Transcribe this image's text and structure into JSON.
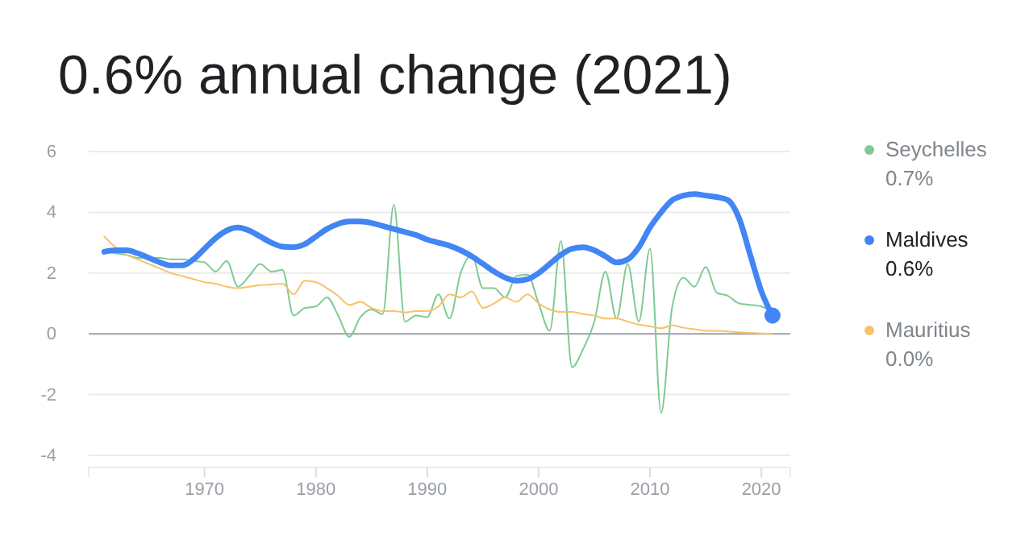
{
  "chart_data": {
    "type": "line",
    "title": "0.6% annual change (2021)",
    "x": [
      1961,
      1962,
      1963,
      1964,
      1965,
      1966,
      1967,
      1968,
      1969,
      1970,
      1971,
      1972,
      1973,
      1974,
      1975,
      1976,
      1977,
      1978,
      1979,
      1980,
      1981,
      1982,
      1983,
      1984,
      1985,
      1986,
      1987,
      1988,
      1989,
      1990,
      1991,
      1992,
      1993,
      1994,
      1995,
      1996,
      1997,
      1998,
      1999,
      2000,
      2001,
      2002,
      2003,
      2004,
      2005,
      2006,
      2007,
      2008,
      2009,
      2010,
      2011,
      2012,
      2013,
      2014,
      2015,
      2016,
      2017,
      2018,
      2019,
      2020,
      2021
    ],
    "xlim": [
      1959.6,
      2022.6
    ],
    "xticks": [
      1970,
      1980,
      1990,
      2000,
      2010,
      2020
    ],
    "ylim": [
      -4.4,
      6
    ],
    "yticks": [
      -4,
      -2,
      0,
      2,
      4,
      6
    ],
    "grid": "y",
    "legend": "right",
    "annotations": [
      "0.7%",
      "0.6%",
      "0.0%"
    ],
    "series": [
      {
        "name": "Seychelles",
        "color": "#81c995",
        "values": [
          2.75,
          2.65,
          2.6,
          2.5,
          2.5,
          2.5,
          2.45,
          2.45,
          2.4,
          2.35,
          2.05,
          2.4,
          1.55,
          1.9,
          2.3,
          2.05,
          2.1,
          0.6,
          0.85,
          0.9,
          1.2,
          0.6,
          -0.1,
          0.55,
          0.8,
          0.65,
          4.25,
          0.4,
          0.6,
          0.55,
          1.3,
          0.5,
          2.0,
          2.6,
          1.5,
          1.5,
          1.2,
          1.9,
          1.95,
          1.0,
          0.1,
          3.05,
          -1.1,
          -0.5,
          0.4,
          2.05,
          0.5,
          2.3,
          0.4,
          2.8,
          -2.6,
          0.9,
          1.85,
          1.55,
          2.2,
          1.35,
          1.25,
          1.0,
          0.95,
          0.9,
          0.7
        ]
      },
      {
        "name": "Maldives",
        "color": "#4285f4",
        "values": [
          2.7,
          2.75,
          2.75,
          2.65,
          2.5,
          2.35,
          2.25,
          2.25,
          2.45,
          2.8,
          3.15,
          3.4,
          3.5,
          3.4,
          3.2,
          3.0,
          2.87,
          2.85,
          2.95,
          3.2,
          3.45,
          3.62,
          3.7,
          3.7,
          3.65,
          3.55,
          3.45,
          3.35,
          3.25,
          3.1,
          3.0,
          2.9,
          2.75,
          2.55,
          2.3,
          2.05,
          1.85,
          1.75,
          1.8,
          2.0,
          2.3,
          2.6,
          2.8,
          2.85,
          2.75,
          2.55,
          2.35,
          2.45,
          2.85,
          3.5,
          4.0,
          4.4,
          4.55,
          4.6,
          4.55,
          4.5,
          4.4,
          3.8,
          2.6,
          1.4,
          0.6
        ]
      },
      {
        "name": "Mauritius",
        "color": "#f6c26b",
        "values": [
          3.2,
          2.85,
          2.6,
          2.45,
          2.3,
          2.15,
          2.0,
          1.9,
          1.8,
          1.7,
          1.65,
          1.55,
          1.5,
          1.55,
          1.6,
          1.62,
          1.65,
          1.3,
          1.75,
          1.7,
          1.5,
          1.25,
          0.95,
          1.05,
          0.85,
          0.75,
          0.75,
          0.7,
          0.75,
          0.75,
          0.9,
          1.3,
          1.2,
          1.4,
          0.85,
          1.0,
          1.2,
          1.05,
          1.3,
          1.0,
          0.8,
          0.72,
          0.72,
          0.65,
          0.6,
          0.5,
          0.5,
          0.4,
          0.3,
          0.25,
          0.18,
          0.28,
          0.2,
          0.15,
          0.1,
          0.1,
          0.08,
          0.05,
          0.03,
          0.01,
          0.0
        ]
      }
    ]
  }
}
